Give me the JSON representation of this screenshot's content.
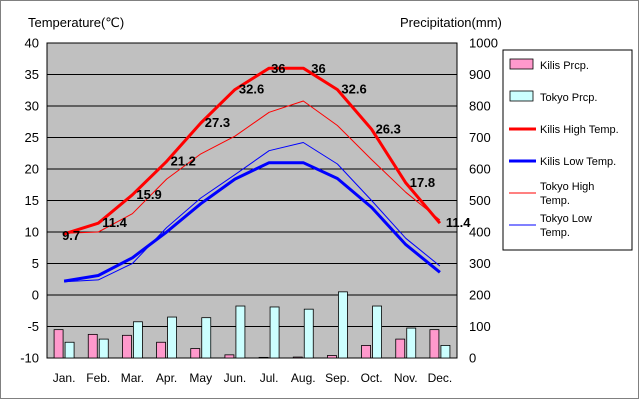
{
  "chart_data": {
    "type": "bar+line",
    "categories": [
      "Jan.",
      "Feb.",
      "Mar.",
      "Apr.",
      "May",
      "Jun.",
      "Jul.",
      "Aug.",
      "Sep.",
      "Oct.",
      "Nov.",
      "Dec."
    ],
    "left_axis": {
      "label": "Temperature(℃)",
      "min": -10,
      "max": 40,
      "ticks": [
        40,
        35,
        30,
        25,
        20,
        15,
        10,
        5,
        0,
        -5,
        -10
      ]
    },
    "right_axis": {
      "label": "Precipitation(mm)",
      "min": 0,
      "max": 1000,
      "ticks": [
        1000,
        900,
        800,
        700,
        600,
        500,
        400,
        300,
        200,
        100,
        0
      ]
    },
    "bar_series": [
      {
        "name": "Kilis Prcp.",
        "color": "#ff99cc",
        "values": [
          90,
          75,
          72,
          50,
          30,
          10,
          2,
          3,
          8,
          40,
          60,
          90
        ]
      },
      {
        "name": "Tokyo Prcp.",
        "color": "#ccffff",
        "values": [
          50,
          60,
          115,
          130,
          128,
          165,
          162,
          155,
          210,
          165,
          95,
          40
        ]
      }
    ],
    "line_series": [
      {
        "name": "Kilis High Temp.",
        "color": "#ff0000",
        "width": 3,
        "values": [
          9.7,
          11.4,
          15.9,
          21.2,
          27.3,
          32.6,
          36,
          36,
          32.6,
          26.3,
          17.8,
          11.4
        ],
        "labels": [
          "9.7",
          "11.4",
          "15.9",
          "21.2",
          "27.3",
          "32.6",
          "36",
          "36",
          "32.6",
          "26.3",
          "17.8",
          "11.4"
        ]
      },
      {
        "name": "Kilis Low Temp.",
        "color": "#0000ff",
        "width": 3,
        "values": [
          2.2,
          3.1,
          5.9,
          10.0,
          14.5,
          18.4,
          21.0,
          21.0,
          18.5,
          13.9,
          8.0,
          3.6
        ]
      },
      {
        "name": "Tokyo High Temp.",
        "color": "#ff0000",
        "width": 1,
        "values": [
          9.8,
          10.0,
          12.9,
          18.4,
          22.4,
          25.2,
          29.0,
          30.8,
          26.9,
          21.5,
          16.3,
          11.9
        ]
      },
      {
        "name": "Tokyo Low Temp.",
        "color": "#0000ff",
        "width": 1,
        "values": [
          2.1,
          2.4,
          5.0,
          10.7,
          15.4,
          19.1,
          22.9,
          24.2,
          20.8,
          15.0,
          9.0,
          4.6
        ]
      }
    ],
    "legend": {
      "position": "right",
      "entries": [
        {
          "label_lines": [
            "Kilis Prcp."
          ],
          "kind": "bar",
          "color": "#ff99cc"
        },
        {
          "label_lines": [
            "Tokyo Prcp."
          ],
          "kind": "bar",
          "color": "#ccffff"
        },
        {
          "label_lines": [
            "Kilis High Temp."
          ],
          "kind": "line",
          "color": "#ff0000",
          "width": 3
        },
        {
          "label_lines": [
            "Kilis Low Temp."
          ],
          "kind": "line",
          "color": "#0000ff",
          "width": 3
        },
        {
          "label_lines": [
            "Tokyo High",
            "Temp."
          ],
          "kind": "line",
          "color": "#ff0000",
          "width": 1
        },
        {
          "label_lines": [
            "Tokyo Low",
            "Temp."
          ],
          "kind": "line",
          "color": "#0000ff",
          "width": 1
        }
      ]
    },
    "grid": true,
    "plot_background": "#c0c0c0"
  }
}
